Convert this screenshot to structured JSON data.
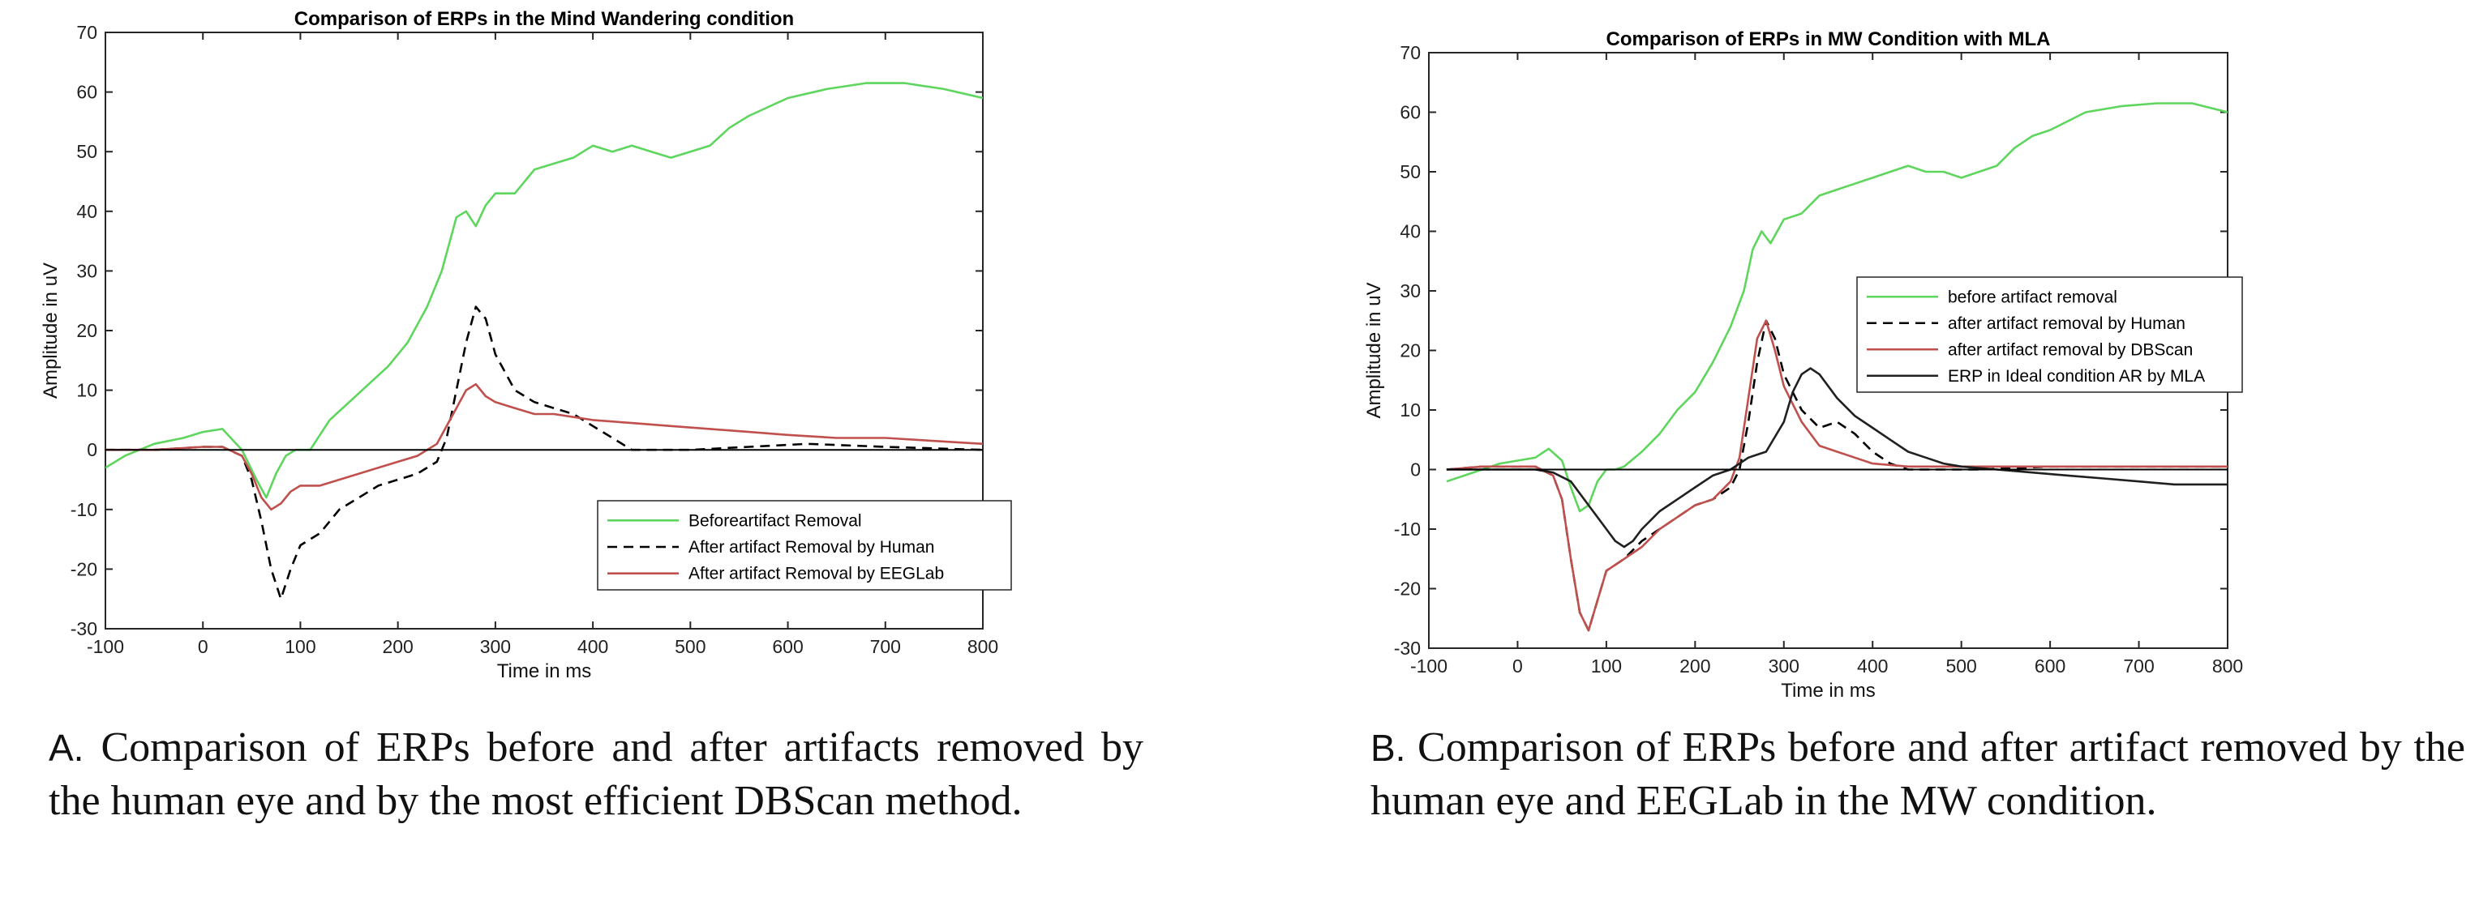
{
  "chart_data": [
    {
      "type": "line",
      "title": "Comparison of ERPs in the Mind Wandering condition",
      "xlabel": "Time in ms",
      "ylabel": "Amplitude in uV",
      "xlim": [
        -100,
        800
      ],
      "ylim": [
        -30,
        70
      ],
      "xticks": [
        -100,
        0,
        100,
        200,
        300,
        400,
        500,
        600,
        700,
        800
      ],
      "yticks": [
        -30,
        -20,
        -10,
        0,
        10,
        20,
        30,
        40,
        50,
        60,
        70
      ],
      "legend_position": "lower-right",
      "series": [
        {
          "name": "Beforeartifact Removal",
          "color": "#5ed65e",
          "dash": "solid",
          "x": [
            -100,
            -80,
            -50,
            -20,
            0,
            20,
            40,
            55,
            65,
            75,
            85,
            95,
            110,
            130,
            150,
            170,
            190,
            210,
            230,
            245,
            260,
            270,
            280,
            290,
            300,
            320,
            340,
            360,
            380,
            400,
            420,
            440,
            460,
            480,
            500,
            520,
            540,
            560,
            580,
            600,
            640,
            680,
            720,
            760,
            800
          ],
          "y": [
            -3,
            -1,
            1,
            2,
            3,
            3.5,
            0,
            -5,
            -8,
            -4,
            -1,
            0,
            0,
            5,
            8,
            11,
            14,
            18,
            24,
            30,
            39,
            40,
            37.5,
            41,
            43,
            43,
            47,
            48,
            49,
            51,
            50,
            51,
            50,
            49,
            50,
            51,
            54,
            56,
            57.5,
            59,
            60.5,
            61.5,
            61.5,
            60.5,
            59
          ]
        },
        {
          "name": "After artifact Removal by Human",
          "color": "#000000",
          "dash": "dashed",
          "x": [
            -100,
            -50,
            0,
            20,
            40,
            50,
            60,
            70,
            80,
            90,
            100,
            120,
            140,
            160,
            180,
            200,
            220,
            240,
            250,
            260,
            270,
            280,
            290,
            300,
            320,
            340,
            360,
            380,
            400,
            420,
            440,
            500,
            560,
            620,
            700,
            800
          ],
          "y": [
            0,
            0,
            0.5,
            0.5,
            -1,
            -5,
            -12,
            -20,
            -25,
            -20,
            -16,
            -14,
            -10,
            -8,
            -6,
            -5,
            -4,
            -2,
            2,
            10,
            18,
            24,
            22,
            16,
            10,
            8,
            7,
            6,
            4,
            2,
            0,
            0,
            0.5,
            1,
            0.5,
            0
          ]
        },
        {
          "name": "After artifact Removal by EEGLab",
          "color": "#c0504d",
          "dash": "solid",
          "x": [
            -100,
            -50,
            0,
            20,
            40,
            50,
            60,
            70,
            80,
            90,
            100,
            120,
            140,
            160,
            180,
            200,
            220,
            240,
            250,
            260,
            270,
            280,
            290,
            300,
            320,
            340,
            360,
            380,
            400,
            440,
            480,
            520,
            560,
            600,
            650,
            700,
            750,
            800
          ],
          "y": [
            0,
            0,
            0.5,
            0.5,
            -1,
            -4,
            -8,
            -10,
            -9,
            -7,
            -6,
            -6,
            -5,
            -4,
            -3,
            -2,
            -1,
            1,
            4,
            7,
            10,
            11,
            9,
            8,
            7,
            6,
            6,
            5.5,
            5,
            4.5,
            4,
            3.5,
            3,
            2.5,
            2,
            2,
            1.5,
            1
          ]
        },
        {
          "name": "",
          "color": "#000000",
          "dash": "solid",
          "x": [
            -100,
            800
          ],
          "y": [
            0,
            0
          ]
        }
      ]
    },
    {
      "type": "line",
      "title": "Comparison of ERPs in MW Condition with MLA",
      "xlabel": "Time in ms",
      "ylabel": "Amplitude in uV",
      "xlim": [
        -100,
        800
      ],
      "ylim": [
        -30,
        70
      ],
      "xticks": [
        -100,
        0,
        100,
        200,
        300,
        400,
        500,
        600,
        700,
        800
      ],
      "yticks": [
        -30,
        -20,
        -10,
        0,
        10,
        20,
        30,
        40,
        50,
        60,
        70
      ],
      "legend_position": "center-right",
      "series": [
        {
          "name": "before artifact removal",
          "color": "#5ed65e",
          "dash": "solid",
          "x": [
            -80,
            -60,
            -40,
            -20,
            0,
            20,
            35,
            50,
            60,
            70,
            80,
            90,
            100,
            110,
            120,
            140,
            160,
            180,
            200,
            220,
            240,
            255,
            265,
            275,
            285,
            300,
            320,
            340,
            360,
            380,
            400,
            420,
            440,
            460,
            480,
            500,
            520,
            540,
            560,
            580,
            600,
            640,
            680,
            720,
            760,
            800
          ],
          "y": [
            -2,
            -1,
            0,
            1,
            1.5,
            2,
            3.5,
            1.5,
            -3,
            -7,
            -6,
            -2,
            0,
            0,
            0.5,
            3,
            6,
            10,
            13,
            18,
            24,
            30,
            37,
            40,
            38,
            42,
            43,
            46,
            47,
            48,
            49,
            50,
            51,
            50,
            50,
            49,
            50,
            51,
            54,
            56,
            57,
            60,
            61,
            61.5,
            61.5,
            60
          ]
        },
        {
          "name": "after artifact removal by Human",
          "color": "#000000",
          "dash": "dashed",
          "x": [
            -80,
            -40,
            0,
            20,
            40,
            50,
            60,
            70,
            80,
            90,
            100,
            120,
            140,
            160,
            180,
            200,
            220,
            240,
            250,
            260,
            270,
            280,
            290,
            300,
            320,
            340,
            360,
            380,
            400,
            420,
            440,
            480,
            520,
            600,
            700,
            800
          ],
          "y": [
            0,
            0.5,
            0.5,
            0.5,
            -1,
            -5,
            -15,
            -24,
            -27,
            -22,
            -17,
            -15,
            -12,
            -10,
            -8,
            -6,
            -5,
            -3,
            0,
            8,
            18,
            25,
            22,
            16,
            10,
            7,
            8,
            6,
            3,
            1,
            0,
            0,
            0,
            0.5,
            0.5,
            0.5
          ]
        },
        {
          "name": "after artifact removal by DBScan",
          "color": "#c0504d",
          "dash": "solid",
          "x": [
            -80,
            -40,
            0,
            20,
            40,
            50,
            60,
            70,
            80,
            90,
            100,
            120,
            140,
            160,
            180,
            200,
            220,
            240,
            250,
            260,
            270,
            280,
            290,
            300,
            320,
            340,
            360,
            380,
            400,
            440,
            500,
            560,
            640,
            720,
            800
          ],
          "y": [
            0,
            0.5,
            0.5,
            0.5,
            -1,
            -5,
            -15,
            -24,
            -27,
            -22,
            -17,
            -15,
            -13,
            -10,
            -8,
            -6,
            -5,
            -2,
            2,
            12,
            22,
            25,
            20,
            14,
            8,
            4,
            3,
            2,
            1,
            0.5,
            0.5,
            0.5,
            0.5,
            0.5,
            0.5
          ]
        },
        {
          "name": "ERP in Ideal condition AR by MLA",
          "color": "#202020",
          "dash": "solid",
          "x": [
            -80,
            -40,
            0,
            20,
            40,
            60,
            80,
            100,
            110,
            120,
            130,
            140,
            160,
            180,
            200,
            220,
            240,
            260,
            280,
            300,
            310,
            320,
            330,
            340,
            360,
            380,
            400,
            420,
            440,
            460,
            480,
            500,
            540,
            580,
            620,
            660,
            700,
            740,
            780,
            800
          ],
          "y": [
            0,
            0,
            0,
            0,
            -0.5,
            -2,
            -6,
            -10,
            -12,
            -13,
            -12,
            -10,
            -7,
            -5,
            -3,
            -1,
            0,
            2,
            3,
            8,
            13,
            16,
            17,
            16,
            12,
            9,
            7,
            5,
            3,
            2,
            1,
            0.5,
            0,
            -0.5,
            -1,
            -1.5,
            -2,
            -2.5,
            -2.5,
            -2.5
          ]
        },
        {
          "name": "",
          "color": "#000000",
          "dash": "solid",
          "x": [
            -80,
            800
          ],
          "y": [
            0,
            0
          ]
        }
      ]
    }
  ],
  "captions": [
    {
      "letter": "A.",
      "text": " Comparison of ERPs before and after artifacts removed by the human eye and by the most efficient DBScan method."
    },
    {
      "letter": "B.",
      "text": " Comparison of ERPs before and after artifact removed by the human eye and EEGLab in the MW condition."
    }
  ]
}
